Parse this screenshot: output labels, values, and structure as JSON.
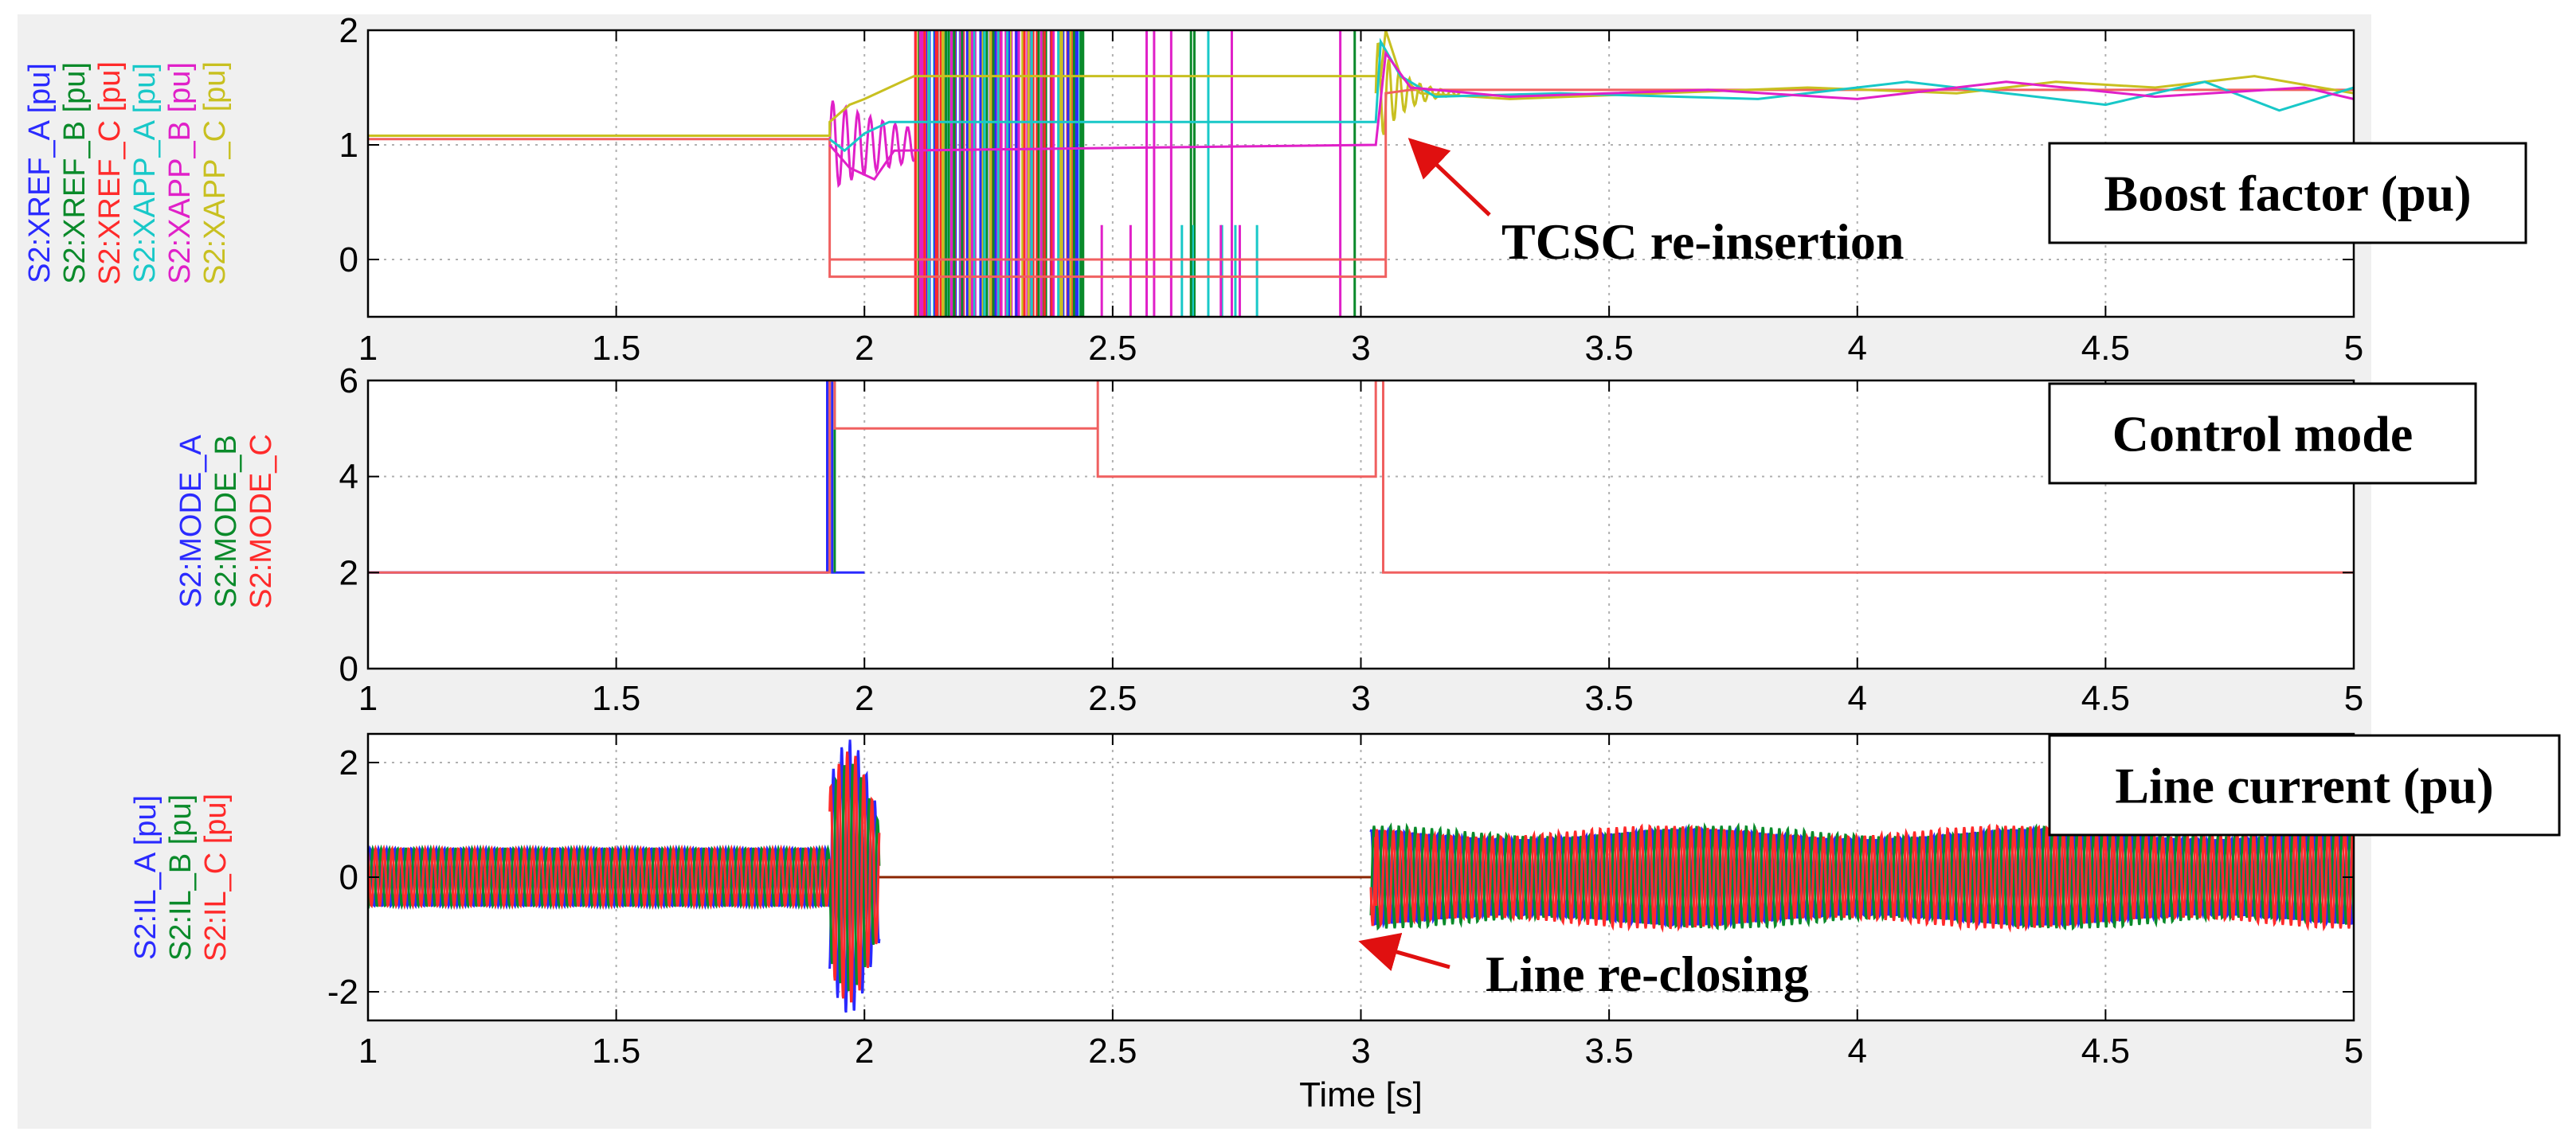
{
  "colors": {
    "figure_bg": "#f0f0f0",
    "axes_bg": "#ffffff",
    "grid": "#b0b0b0",
    "blue": "#2a2aff",
    "green": "#0a8a2a",
    "red": "#ff2a2a",
    "cyan": "#18c8c8",
    "magenta": "#e020c8",
    "olive": "#c8c020",
    "arrow": "#e01010",
    "line_red": "#f06060",
    "brown": "#8b2500"
  },
  "chart_data": [
    {
      "type": "line",
      "name": "boost-factor",
      "box_label": "Boost factor (pu)",
      "annotation": "TCSC re-insertion",
      "xlim": [
        1,
        5
      ],
      "ylim": [
        -0.5,
        2
      ],
      "xticks": [
        1,
        1.5,
        2,
        2.5,
        3,
        3.5,
        4,
        4.5,
        5
      ],
      "xtick_labels": [
        "1",
        "1.5",
        "2",
        "2.5",
        "3",
        "3.5",
        "4",
        "4.5",
        "5"
      ],
      "yticks": [
        0,
        1,
        2
      ],
      "ytick_labels": [
        "0",
        "1",
        "2"
      ],
      "ylabels": [
        {
          "text": "S2:XREF_A [pu]",
          "color": "#2a2aff"
        },
        {
          "text": "S2:XREF_B [pu]",
          "color": "#0a8a2a"
        },
        {
          "text": "S2:XREF_C [pu]",
          "color": "#ff2a2a"
        },
        {
          "text": "S2:XAPP_A [pu]",
          "color": "#18c8c8"
        },
        {
          "text": "S2:XAPP_B [pu]",
          "color": "#e020c8"
        },
        {
          "text": "S2:XAPP_C [pu]",
          "color": "#c8c020"
        }
      ],
      "series": [
        {
          "name": "S2:XREF_C [pu]",
          "color": "#f06060",
          "points": [
            [
              1,
              1.05
            ],
            [
              1.93,
              1.05
            ],
            [
              1.93,
              -0.15
            ],
            [
              3.05,
              -0.15
            ],
            [
              3.05,
              1.45
            ],
            [
              3.1,
              1.48
            ],
            [
              5,
              1.48
            ]
          ]
        },
        {
          "name": "S2:XAPP_C [pu]",
          "color": "#c8c020",
          "points": [
            [
              1,
              1.08
            ],
            [
              1.93,
              1.08
            ],
            [
              1.93,
              1.2
            ],
            [
              1.97,
              1.35
            ],
            [
              2.0,
              1.4
            ],
            [
              2.05,
              1.5
            ],
            [
              2.1,
              1.6
            ],
            [
              3.04,
              1.6
            ],
            [
              3.05,
              2.0
            ],
            [
              3.08,
              1.6
            ],
            [
              3.12,
              1.45
            ],
            [
              3.3,
              1.4
            ],
            [
              3.6,
              1.45
            ],
            [
              3.9,
              1.5
            ],
            [
              4.2,
              1.45
            ],
            [
              4.4,
              1.55
            ],
            [
              4.6,
              1.5
            ],
            [
              4.8,
              1.6
            ],
            [
              5,
              1.45
            ]
          ]
        },
        {
          "name": "S2:XAPP_A [pu]",
          "color": "#18c8c8",
          "points": [
            [
              1.93,
              1.05
            ],
            [
              1.96,
              0.95
            ],
            [
              2.0,
              1.1
            ],
            [
              2.05,
              1.2
            ],
            [
              3.03,
              1.2
            ],
            [
              3.04,
              1.9
            ],
            [
              3.08,
              1.6
            ],
            [
              3.15,
              1.42
            ],
            [
              3.4,
              1.45
            ],
            [
              3.8,
              1.4
            ],
            [
              4.1,
              1.55
            ],
            [
              4.3,
              1.45
            ],
            [
              4.5,
              1.35
            ],
            [
              4.7,
              1.55
            ],
            [
              4.85,
              1.3
            ],
            [
              5,
              1.5
            ]
          ]
        },
        {
          "name": "S2:XAPP_B [pu]",
          "color": "#e020c8",
          "points": [
            [
              1.93,
              1.0
            ],
            [
              1.97,
              0.8
            ],
            [
              2.02,
              0.7
            ],
            [
              2.06,
              0.95
            ],
            [
              3.03,
              1.0
            ],
            [
              3.05,
              1.8
            ],
            [
              3.1,
              1.5
            ],
            [
              3.3,
              1.42
            ],
            [
              3.7,
              1.48
            ],
            [
              4.0,
              1.4
            ],
            [
              4.3,
              1.55
            ],
            [
              4.6,
              1.42
            ],
            [
              4.9,
              1.5
            ],
            [
              5,
              1.4
            ]
          ]
        }
      ]
    },
    {
      "type": "line",
      "name": "control-mode",
      "box_label": "Control mode",
      "xlim": [
        1,
        5
      ],
      "ylim": [
        0,
        6
      ],
      "xticks": [
        1,
        1.5,
        2,
        2.5,
        3,
        3.5,
        4,
        4.5,
        5
      ],
      "xtick_labels": [
        "1",
        "1.5",
        "2",
        "2.5",
        "3",
        "3.5",
        "4",
        "4.5",
        "5"
      ],
      "yticks": [
        0,
        2,
        4,
        6
      ],
      "ytick_labels": [
        "0",
        "2",
        "4",
        "6"
      ],
      "ylabels": [
        {
          "text": "S2:MODE_A",
          "color": "#2a2aff"
        },
        {
          "text": "S2:MODE_B",
          "color": "#0a8a2a"
        },
        {
          "text": "S2:MODE_C",
          "color": "#ff2a2a"
        }
      ],
      "series": [
        {
          "name": "S2:MODE_A",
          "color": "#2a2aff",
          "points": [
            [
              1,
              2
            ],
            [
              1.925,
              2
            ],
            [
              1.925,
              6
            ],
            [
              1.935,
              6
            ],
            [
              1.935,
              2
            ],
            [
              2.0,
              2
            ]
          ]
        },
        {
          "name": "S2:MODE_B",
          "color": "#0a8a2a",
          "points": [
            [
              1.93,
              2
            ],
            [
              1.93,
              6
            ],
            [
              1.94,
              6
            ],
            [
              1.94,
              2
            ]
          ]
        },
        {
          "name": "S2:MODE_C",
          "color": "#f06060",
          "points": [
            [
              1,
              2
            ],
            [
              1.93,
              2
            ],
            [
              1.93,
              6
            ],
            [
              1.94,
              6
            ],
            [
              1.94,
              5
            ],
            [
              2.47,
              5
            ],
            [
              2.47,
              6
            ],
            [
              2.47,
              4
            ],
            [
              3.03,
              4
            ],
            [
              3.03,
              6
            ],
            [
              3.045,
              6
            ],
            [
              3.045,
              2
            ],
            [
              5,
              2
            ]
          ]
        }
      ]
    },
    {
      "type": "line",
      "name": "line-current",
      "box_label": "Line current (pu)",
      "annotation": "Line re-closing",
      "xlabel": "Time [s]",
      "xlim": [
        1,
        5
      ],
      "ylim": [
        -2.5,
        2.5
      ],
      "xticks": [
        1,
        1.5,
        2,
        2.5,
        3,
        3.5,
        4,
        4.5,
        5
      ],
      "xtick_labels": [
        "1",
        "1.5",
        "2",
        "2.5",
        "3",
        "3.5",
        "4",
        "4.5",
        "5"
      ],
      "yticks": [
        -2,
        0,
        2
      ],
      "ytick_labels": [
        "-2",
        "0",
        "2"
      ],
      "ylabels": [
        {
          "text": "S2:IL_A [pu]",
          "color": "#2a2aff"
        },
        {
          "text": "S2:IL_B [pu]",
          "color": "#0a8a2a"
        },
        {
          "text": "S2:IL_C [pu]",
          "color": "#ff2a2a"
        }
      ],
      "series": [
        {
          "name": "S2:IL_A [pu]",
          "color": "#2a2aff",
          "amplitude_pre_fault": 0.5,
          "amplitude_fault": 2.4,
          "amplitude_post": 0.75,
          "frequency_hz": 60,
          "phase_deg": 0
        },
        {
          "name": "S2:IL_B [pu]",
          "color": "#0a8a2a",
          "amplitude_pre_fault": 0.5,
          "amplitude_fault": 2.0,
          "amplitude_post": 0.8,
          "frequency_hz": 60,
          "phase_deg": -120
        },
        {
          "name": "S2:IL_C [pu]",
          "color": "#ff2a2a",
          "amplitude_pre_fault": 0.5,
          "amplitude_fault": 2.2,
          "amplitude_post": 0.8,
          "frequency_hz": 60,
          "phase_deg": 120
        }
      ],
      "fault_start": 1.93,
      "fault_end": 2.03,
      "reclose_time": 3.02
    }
  ]
}
